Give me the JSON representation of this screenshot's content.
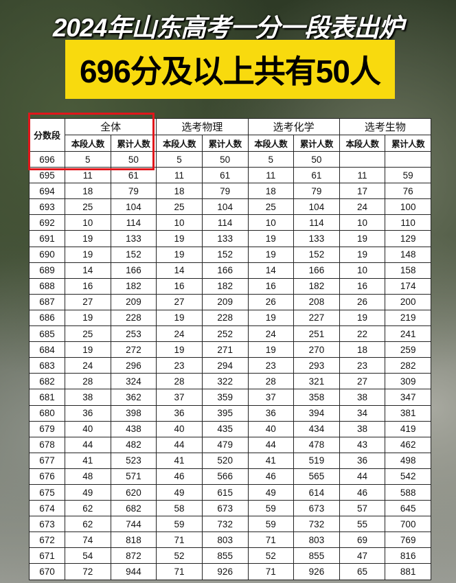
{
  "title": "2024年山东高考一分一段表出炉",
  "banner": "696分及以上共有50人",
  "colors": {
    "banner_bg": "#f8da0e",
    "highlight_box": "#e0161b"
  },
  "table": {
    "score_header": "分数段",
    "groups": [
      "全体",
      "选考物理",
      "选考化学",
      "选考生物"
    ],
    "sub_headers": [
      "本段人数",
      "累计人数"
    ],
    "rows": [
      [
        "696",
        "5",
        "50",
        "5",
        "50",
        "5",
        "50",
        "",
        ""
      ],
      [
        "695",
        "11",
        "61",
        "11",
        "61",
        "11",
        "61",
        "11",
        "59"
      ],
      [
        "694",
        "18",
        "79",
        "18",
        "79",
        "18",
        "79",
        "17",
        "76"
      ],
      [
        "693",
        "25",
        "104",
        "25",
        "104",
        "25",
        "104",
        "24",
        "100"
      ],
      [
        "692",
        "10",
        "114",
        "10",
        "114",
        "10",
        "114",
        "10",
        "110"
      ],
      [
        "691",
        "19",
        "133",
        "19",
        "133",
        "19",
        "133",
        "19",
        "129"
      ],
      [
        "690",
        "19",
        "152",
        "19",
        "152",
        "19",
        "152",
        "19",
        "148"
      ],
      [
        "689",
        "14",
        "166",
        "14",
        "166",
        "14",
        "166",
        "10",
        "158"
      ],
      [
        "688",
        "16",
        "182",
        "16",
        "182",
        "16",
        "182",
        "16",
        "174"
      ],
      [
        "687",
        "27",
        "209",
        "27",
        "209",
        "26",
        "208",
        "26",
        "200"
      ],
      [
        "686",
        "19",
        "228",
        "19",
        "228",
        "19",
        "227",
        "19",
        "219"
      ],
      [
        "685",
        "25",
        "253",
        "24",
        "252",
        "24",
        "251",
        "22",
        "241"
      ],
      [
        "684",
        "19",
        "272",
        "19",
        "271",
        "19",
        "270",
        "18",
        "259"
      ],
      [
        "683",
        "24",
        "296",
        "23",
        "294",
        "23",
        "293",
        "23",
        "282"
      ],
      [
        "682",
        "28",
        "324",
        "28",
        "322",
        "28",
        "321",
        "27",
        "309"
      ],
      [
        "681",
        "38",
        "362",
        "37",
        "359",
        "37",
        "358",
        "38",
        "347"
      ],
      [
        "680",
        "36",
        "398",
        "36",
        "395",
        "36",
        "394",
        "34",
        "381"
      ],
      [
        "679",
        "40",
        "438",
        "40",
        "435",
        "40",
        "434",
        "38",
        "419"
      ],
      [
        "678",
        "44",
        "482",
        "44",
        "479",
        "44",
        "478",
        "43",
        "462"
      ],
      [
        "677",
        "41",
        "523",
        "41",
        "520",
        "41",
        "519",
        "36",
        "498"
      ],
      [
        "676",
        "48",
        "571",
        "46",
        "566",
        "46",
        "565",
        "44",
        "542"
      ],
      [
        "675",
        "49",
        "620",
        "49",
        "615",
        "49",
        "614",
        "46",
        "588"
      ],
      [
        "674",
        "62",
        "682",
        "58",
        "673",
        "59",
        "673",
        "57",
        "645"
      ],
      [
        "673",
        "62",
        "744",
        "59",
        "732",
        "59",
        "732",
        "55",
        "700"
      ],
      [
        "672",
        "74",
        "818",
        "71",
        "803",
        "71",
        "803",
        "69",
        "769"
      ],
      [
        "671",
        "54",
        "872",
        "52",
        "855",
        "52",
        "855",
        "47",
        "816"
      ],
      [
        "670",
        "72",
        "944",
        "71",
        "926",
        "71",
        "926",
        "65",
        "881"
      ]
    ]
  }
}
